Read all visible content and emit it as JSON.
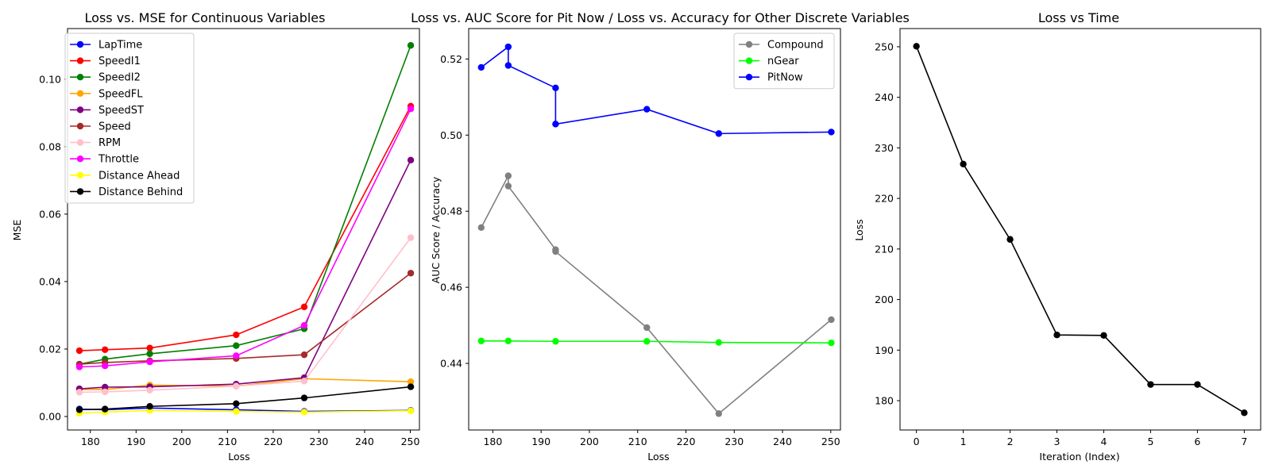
{
  "chart_data": [
    {
      "type": "line",
      "title": "Loss vs. MSE for Continuous Variables",
      "xlabel": "Loss",
      "ylabel": "MSE",
      "xlim": [
        175,
        252
      ],
      "ylim": [
        -0.004,
        0.115
      ],
      "xticks": [
        180,
        190,
        200,
        210,
        220,
        230,
        240,
        250
      ],
      "yticks": [
        0.0,
        0.02,
        0.04,
        0.06,
        0.08,
        0.1
      ],
      "ytick_labels": [
        "0.00",
        "0.02",
        "0.04",
        "0.06",
        "0.08",
        "0.10"
      ],
      "legend_position": "upper-left",
      "x": [
        177.6,
        183.2,
        193.0,
        211.9,
        226.8,
        250.1
      ],
      "series": [
        {
          "name": "LapTime",
          "color": "#0000ff",
          "values": [
            0.0022,
            0.002,
            0.0025,
            0.002,
            0.0015,
            0.0018
          ]
        },
        {
          "name": "SpeedI1",
          "color": "#ff0000",
          "values": [
            0.0195,
            0.0198,
            0.0203,
            0.0242,
            0.0325,
            0.092
          ]
        },
        {
          "name": "SpeedI2",
          "color": "#008000",
          "values": [
            0.0155,
            0.017,
            0.0186,
            0.021,
            0.026,
            0.11
          ]
        },
        {
          "name": "SpeedFL",
          "color": "#ffa500",
          "values": [
            0.008,
            0.008,
            0.0093,
            0.009,
            0.0112,
            0.0103
          ]
        },
        {
          "name": "SpeedST",
          "color": "#800080",
          "values": [
            0.0082,
            0.0087,
            0.0088,
            0.0096,
            0.0115,
            0.076
          ]
        },
        {
          "name": "Speed",
          "color": "#a52a2a",
          "values": [
            0.0155,
            0.016,
            0.0165,
            0.0172,
            0.0183,
            0.0425
          ]
        },
        {
          "name": "RPM",
          "color": "#ffc0cb",
          "values": [
            0.0072,
            0.0073,
            0.0078,
            0.009,
            0.0105,
            0.053
          ]
        },
        {
          "name": "Throttle",
          "color": "#ff00ff",
          "values": [
            0.0147,
            0.015,
            0.0162,
            0.018,
            0.027,
            0.0912
          ]
        },
        {
          "name": "Distance Ahead",
          "color": "#ffff00",
          "values": [
            0.001,
            0.0013,
            0.0018,
            0.0015,
            0.0013,
            0.0017
          ]
        },
        {
          "name": "Distance Behind",
          "color": "#000000",
          "values": [
            0.002,
            0.0022,
            0.003,
            0.0038,
            0.0055,
            0.0088
          ]
        }
      ]
    },
    {
      "type": "line",
      "title": "Loss vs. AUC Score for Pit Now / Loss vs. Accuracy for Other Discrete Variables",
      "xlabel": "Loss",
      "ylabel": "AUC Score / Accuracy",
      "xlim": [
        175,
        252
      ],
      "ylim": [
        0.4225,
        0.528
      ],
      "xticks": [
        180,
        190,
        200,
        210,
        220,
        230,
        240,
        250
      ],
      "yticks": [
        0.44,
        0.46,
        0.48,
        0.5,
        0.52
      ],
      "ytick_labels": [
        "0.44",
        "0.46",
        "0.48",
        "0.50",
        "0.52"
      ],
      "legend_position": "upper-right",
      "series": [
        {
          "name": "Compound",
          "color": "#808080",
          "points": [
            [
              177.6,
              0.4757
            ],
            [
              183.2,
              0.4893
            ],
            [
              183.2,
              0.4866
            ],
            [
              193.0,
              0.4699
            ],
            [
              193.0,
              0.4694
            ],
            [
              211.9,
              0.4494
            ],
            [
              226.8,
              0.4268
            ],
            [
              250.1,
              0.4515
            ]
          ]
        },
        {
          "name": "nGear",
          "color": "#00ff00",
          "points": [
            [
              177.6,
              0.4459
            ],
            [
              183.2,
              0.4459
            ],
            [
              193.0,
              0.4458
            ],
            [
              211.9,
              0.4458
            ],
            [
              226.8,
              0.4455
            ],
            [
              250.1,
              0.4454
            ]
          ]
        },
        {
          "name": "PitNow",
          "color": "#0000ff",
          "points": [
            [
              177.6,
              0.5178
            ],
            [
              183.2,
              0.5232
            ],
            [
              183.2,
              0.5183
            ],
            [
              193.0,
              0.5124
            ],
            [
              193.0,
              0.5029
            ],
            [
              211.9,
              0.5068
            ],
            [
              226.8,
              0.5004
            ],
            [
              250.1,
              0.5008
            ]
          ]
        }
      ]
    },
    {
      "type": "line",
      "title": "Loss vs Time",
      "xlabel": "Iteration (Index)",
      "ylabel": "Loss",
      "xlim": [
        -0.35,
        7.35
      ],
      "ylim": [
        174.2,
        253.6
      ],
      "xticks": [
        0,
        1,
        2,
        3,
        4,
        5,
        6,
        7
      ],
      "yticks": [
        180,
        190,
        200,
        210,
        220,
        230,
        240,
        250
      ],
      "series": [
        {
          "color": "#000000",
          "x": [
            0,
            1,
            2,
            3,
            4,
            5,
            6,
            7
          ],
          "values": [
            250.1,
            226.8,
            211.9,
            193.0,
            192.9,
            183.2,
            183.2,
            177.6
          ]
        }
      ]
    }
  ]
}
